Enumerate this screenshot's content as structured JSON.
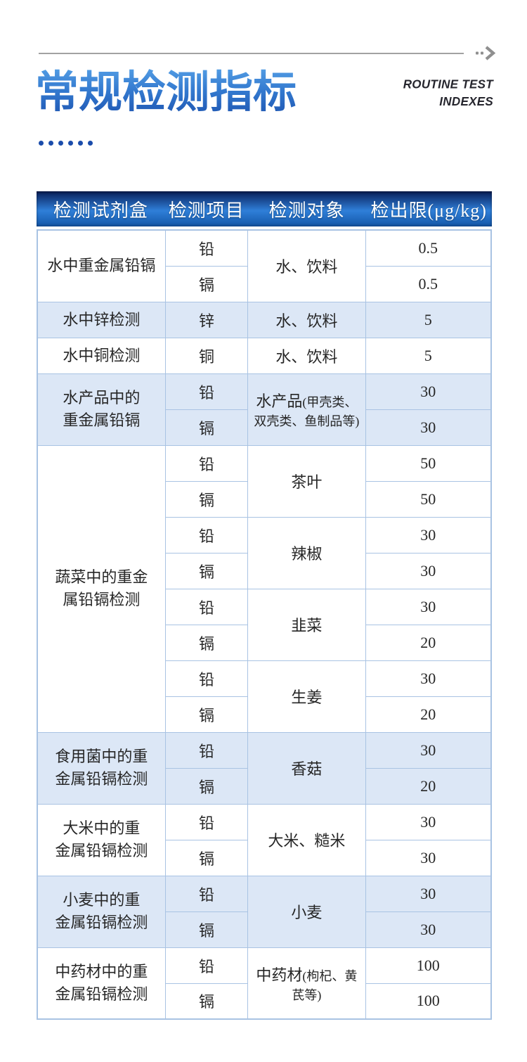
{
  "header": {
    "title_cn": "常规检测指标",
    "title_en_line1": "ROUTINE TEST",
    "title_en_line2": "INDEXES"
  },
  "icons": {
    "arrow": "double-chevron-right-icon"
  },
  "colors": {
    "accent_blue": "#1a4cab",
    "table_header_top": "#081e58",
    "table_header_mid": "#2f7fd8",
    "table_header_bottom": "#1356a8",
    "row_shade": "#dce7f6",
    "table_border": "#a9c3e3",
    "title_gradient_top": "#55a0e6",
    "title_gradient_bottom": "#1b50ad",
    "rule_gray": "#a2a2a2"
  },
  "table": {
    "headers": [
      "检测试剂盒",
      "检测项目",
      "检测对象",
      "检出限(μg/kg)"
    ],
    "groups": [
      {
        "kit_lines": [
          "水中重金属铅镉"
        ],
        "objects": [
          {
            "name": "水、饮料",
            "note": "",
            "rows": [
              {
                "item": "铅",
                "limit": "0.5"
              },
              {
                "item": "镉",
                "limit": "0.5"
              }
            ]
          }
        ]
      },
      {
        "kit_lines": [
          "水中锌检测"
        ],
        "objects": [
          {
            "name": "水、饮料",
            "note": "",
            "rows": [
              {
                "item": "锌",
                "limit": "5"
              }
            ]
          }
        ]
      },
      {
        "kit_lines": [
          "水中铜检测"
        ],
        "objects": [
          {
            "name": "水、饮料",
            "note": "",
            "rows": [
              {
                "item": "铜",
                "limit": "5"
              }
            ]
          }
        ]
      },
      {
        "kit_lines": [
          "水产品中的",
          "重金属铅镉"
        ],
        "objects": [
          {
            "name": "水产品",
            "note": "(甲壳类、双壳类、鱼制品等)",
            "rows": [
              {
                "item": "铅",
                "limit": "30"
              },
              {
                "item": "镉",
                "limit": "30"
              }
            ]
          }
        ]
      },
      {
        "kit_lines": [
          "蔬菜中的重金",
          "属铅镉检测"
        ],
        "objects": [
          {
            "name": "茶叶",
            "note": "",
            "rows": [
              {
                "item": "铅",
                "limit": "50"
              },
              {
                "item": "镉",
                "limit": "50"
              }
            ]
          },
          {
            "name": "辣椒",
            "note": "",
            "rows": [
              {
                "item": "铅",
                "limit": "30"
              },
              {
                "item": "镉",
                "limit": "30"
              }
            ]
          },
          {
            "name": "韭菜",
            "note": "",
            "rows": [
              {
                "item": "铅",
                "limit": "30"
              },
              {
                "item": "镉",
                "limit": "20"
              }
            ]
          },
          {
            "name": "生姜",
            "note": "",
            "rows": [
              {
                "item": "铅",
                "limit": "30"
              },
              {
                "item": "镉",
                "limit": "20"
              }
            ]
          }
        ]
      },
      {
        "kit_lines": [
          "食用菌中的重",
          "金属铅镉检测"
        ],
        "objects": [
          {
            "name": "香菇",
            "note": "",
            "rows": [
              {
                "item": "铅",
                "limit": "30"
              },
              {
                "item": "镉",
                "limit": "20"
              }
            ]
          }
        ]
      },
      {
        "kit_lines": [
          "大米中的重",
          "金属铅镉检测"
        ],
        "objects": [
          {
            "name": "大米、糙米",
            "note": "",
            "rows": [
              {
                "item": "铅",
                "limit": "30"
              },
              {
                "item": "镉",
                "limit": "30"
              }
            ]
          }
        ]
      },
      {
        "kit_lines": [
          "小麦中的重",
          "金属铅镉检测"
        ],
        "objects": [
          {
            "name": "小麦",
            "note": "",
            "rows": [
              {
                "item": "铅",
                "limit": "30"
              },
              {
                "item": "镉",
                "limit": "30"
              }
            ]
          }
        ]
      },
      {
        "kit_lines": [
          "中药材中的重",
          "金属铅镉检测"
        ],
        "objects": [
          {
            "name": "中药材",
            "note": "(枸杞、黄芪等)",
            "rows": [
              {
                "item": "铅",
                "limit": "100"
              },
              {
                "item": "镉",
                "limit": "100"
              }
            ]
          }
        ]
      }
    ]
  }
}
